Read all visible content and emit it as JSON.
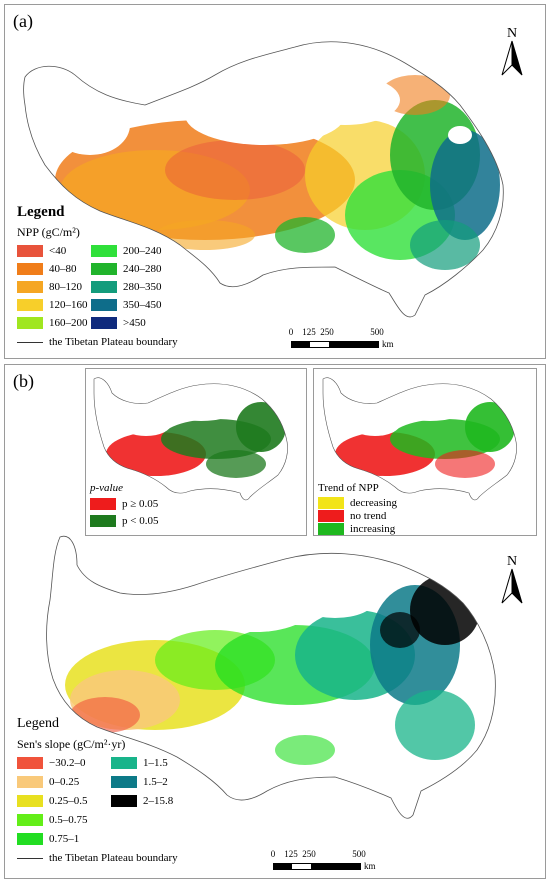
{
  "panel_a": {
    "label": "(a)",
    "north": "N",
    "legend_title": "Legend",
    "legend_subtitle": "NPP (gC/m²)",
    "classes": [
      {
        "label": "<40",
        "color": "#e8533b"
      },
      {
        "label": "40–80",
        "color": "#f07d1a"
      },
      {
        "label": "80–120",
        "color": "#f5a623"
      },
      {
        "label": "120–160",
        "color": "#f7cf2a"
      },
      {
        "label": "160–200",
        "color": "#a0e620"
      },
      {
        "label": "200–240",
        "color": "#2fe03a"
      },
      {
        "label": "240–280",
        "color": "#21b42c"
      },
      {
        "label": "280–350",
        "color": "#139c7c"
      },
      {
        "label": "350–450",
        "color": "#0e6d8a"
      },
      {
        "label": ">450",
        "color": "#0f2a7d"
      }
    ],
    "boundary_label": "the Tibetan Plateau boundary",
    "scale": {
      "ticks": [
        "0",
        "125",
        "250",
        "500"
      ],
      "unit": "km"
    }
  },
  "panel_b": {
    "label": "(b)",
    "north": "N",
    "inset_left": {
      "title": "p-value",
      "classes": [
        {
          "label": "p ≥ 0.05",
          "color": "#ee1c1c"
        },
        {
          "label": "p < 0.05",
          "color": "#1e7a1e"
        }
      ]
    },
    "inset_right": {
      "title": "Trend of NPP",
      "classes": [
        {
          "label": "decreasing",
          "color": "#f2e418"
        },
        {
          "label": "no trend",
          "color": "#ee1c1c"
        },
        {
          "label": "increasing",
          "color": "#1fb81f"
        }
      ]
    },
    "legend_title": "Legend",
    "legend_subtitle": "Sen's slope (gC/m²·yr)",
    "classes": [
      {
        "label": "−30.2–0",
        "color": "#f0533b"
      },
      {
        "label": "0–0.25",
        "color": "#f9c97a"
      },
      {
        "label": "0.25–0.5",
        "color": "#e8e020"
      },
      {
        "label": "0.5–0.75",
        "color": "#63ee18"
      },
      {
        "label": "0.75–1",
        "color": "#22dd22"
      },
      {
        "label": "1–1.5",
        "color": "#18b48a"
      },
      {
        "label": "1.5–2",
        "color": "#0d7a88"
      },
      {
        "label": "2–15.8",
        "color": "#000000"
      }
    ],
    "boundary_label": "the Tibetan Plateau boundary",
    "scale": {
      "ticks": [
        "0",
        "125",
        "250",
        "500"
      ],
      "unit": "km"
    }
  }
}
